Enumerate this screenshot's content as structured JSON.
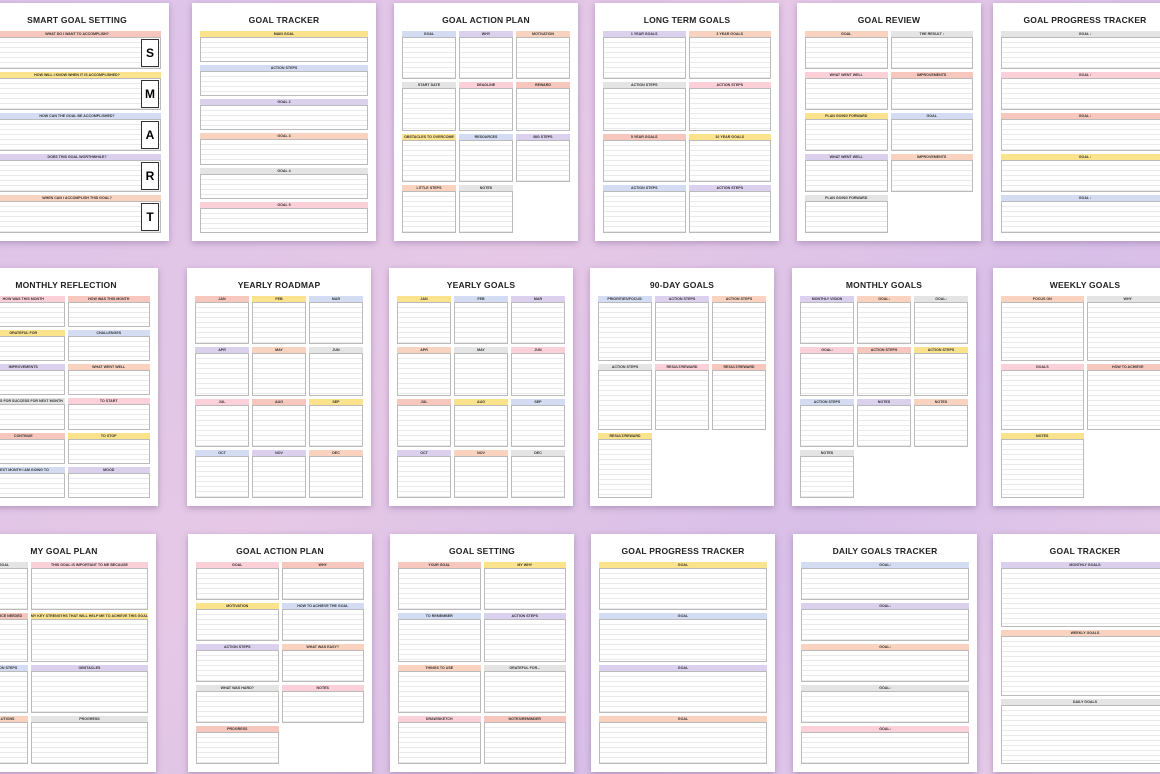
{
  "palette": [
    "#f7c7bd",
    "#fbe28d",
    "#d3dcf2",
    "#dcd0ef",
    "#f9d3c0",
    "#e4e4e4",
    "#fbd0d8"
  ],
  "pages": [
    {
      "title": "SMART GOAL SETTING",
      "sections": [
        "WHAT DO I WANT TO ACCOMPLISH?",
        "HOW WILL I KNOW WHEN IT IS ACCOMPLISHED?",
        "HOW CAN THE GOAL BE ACCOMPLISHED?",
        "DOES THIS GOAL WORTHWHILE?",
        "WHEN CAN I ACCOMPLISH THIS GOAL?"
      ],
      "letters": [
        "S",
        "M",
        "A",
        "R",
        "T"
      ]
    },
    {
      "title": "GOAL TRACKER",
      "sections": [
        "MAIN GOAL",
        "ACTION STEPS",
        "GOAL 2",
        "GOAL 3",
        "GOAL 4",
        "GOAL 5"
      ]
    },
    {
      "title": "GOAL ACTION PLAN",
      "sections": [
        "GOAL",
        "WHY",
        "MOTIVATION",
        "START DATE",
        "DEADLINE",
        "REWARD",
        "OBSTACLES TO OVERCOME",
        "RESOURCES",
        "BIG STEPS",
        "LITTLE STEPS",
        "NOTES"
      ]
    },
    {
      "title": "LONG TERM GOALS",
      "sections": [
        "1 YEAR GOALS",
        "3 YEAR GOALS",
        "ACTION STEPS",
        "ACTION STEPS",
        "5 YEAR GOALS",
        "10 YEAR GOALS",
        "ACTION STEPS",
        "ACTION STEPS"
      ]
    },
    {
      "title": "GOAL REVIEW",
      "sections": [
        "GOAL",
        "THE RESULT :",
        "WHAT WENT WELL",
        "IMPROVEMENTS",
        "PLAN GOING FORWARD",
        "GOAL",
        "WHAT WENT WELL",
        "IMPROVEMENTS",
        "PLAN GOING FORWARD"
      ]
    },
    {
      "title": "GOAL PROGRESS TRACKER",
      "sections": [
        "GOAL :",
        "GOAL :",
        "GOAL :",
        "GOAL :",
        "GOAL :"
      ]
    },
    {
      "title": "MONTHLY REFLECTION",
      "sections": [
        "HOW WAS THIS MONTH",
        "HOW WAS THIS MONTH",
        "GRATEFUL FOR",
        "CHALLENGES",
        "IMPROVEMENTS",
        "WHAT WENT WELL",
        "PLANNING FOR SUCCESS FOR NEXT MONTH",
        "TO START",
        "CONTINUE",
        "TO STOP",
        "NEXT MONTH I AM GOING TO",
        "MOOD"
      ]
    },
    {
      "title": "YEARLY ROADMAP",
      "sections": [
        "JAN",
        "FEB",
        "MAR",
        "APR",
        "MAY",
        "JUN",
        "JUL",
        "AUG",
        "SEP",
        "OCT",
        "NOV",
        "DEC"
      ]
    },
    {
      "title": "YEARLY GOALS",
      "sections": [
        "JAN",
        "FEB",
        "MAR",
        "APR",
        "MAY",
        "JUN",
        "JUL",
        "AUG",
        "SEP",
        "OCT",
        "NOV",
        "DEC"
      ]
    },
    {
      "title": "90-DAY GOALS",
      "sections": [
        "PRIORITIES/FOCUS:",
        "ACTION STEPS",
        "ACTION STEPS",
        "ACTION STEPS",
        "RESULT/REWARD",
        "RESULT/REWARD",
        "RESULT/REWARD"
      ]
    },
    {
      "title": "MONTHLY GOALS",
      "sections": [
        "MONTHLY VISION",
        "GOAL:",
        "GOAL:",
        "GOAL:",
        "ACTION STEPS",
        "ACTION STEPS",
        "ACTION STEPS",
        "NOTES",
        "NOTES",
        "NOTES"
      ]
    },
    {
      "title": "WEEKLY GOALS",
      "sections": [
        "FOCUS ON",
        "WHY",
        "GOALS",
        "HOW TO ACHIEVE",
        "NOTES"
      ]
    },
    {
      "title": "MY GOAL PLAN",
      "sections": [
        "GOAL",
        "THIS GOAL IS IMPORTANT TO ME BECAUSE",
        "RESOURCE NEEDED",
        "MY KEY STRENGTHS THAT WILL HELP ME TO ACHIEVE THIS GOAL",
        "ACTION STEPS",
        "OBSTACLES",
        "SOLUTIONS",
        "PROGRESS"
      ]
    },
    {
      "title": "GOAL ACTION PLAN",
      "sections": [
        "GOAL",
        "WHY",
        "MOTIVATION",
        "HOW TO ACHIEVE THE GOAL",
        "ACTION STEPS",
        "WHAT WAS EASY?",
        "WHAT WAS HARD?",
        "NOTES",
        "PROGRESS"
      ]
    },
    {
      "title": "GOAL SETTING",
      "sections": [
        "YOUR GOAL",
        "MY WHY",
        "TO REMEMBER",
        "ACTION STEPS",
        "THINGS TO USE",
        "GRATEFUL FOR...",
        "DRAW/SKETCH",
        "NOTES/REMINDER"
      ]
    },
    {
      "title": "GOAL PROGRESS TRACKER",
      "sections": [
        "GOAL",
        "GOAL",
        "GOAL",
        "GOAL"
      ]
    },
    {
      "title": "DAILY GOALS TRACKER",
      "sections": [
        "GOAL:",
        "GOAL:",
        "GOAL:",
        "GOAL:",
        "GOAL:"
      ]
    },
    {
      "title": "GOAL TRACKER",
      "sections": [
        "MONTHLY GOALS",
        "WEEKLY GOALS",
        "DAILY GOALS"
      ]
    }
  ]
}
